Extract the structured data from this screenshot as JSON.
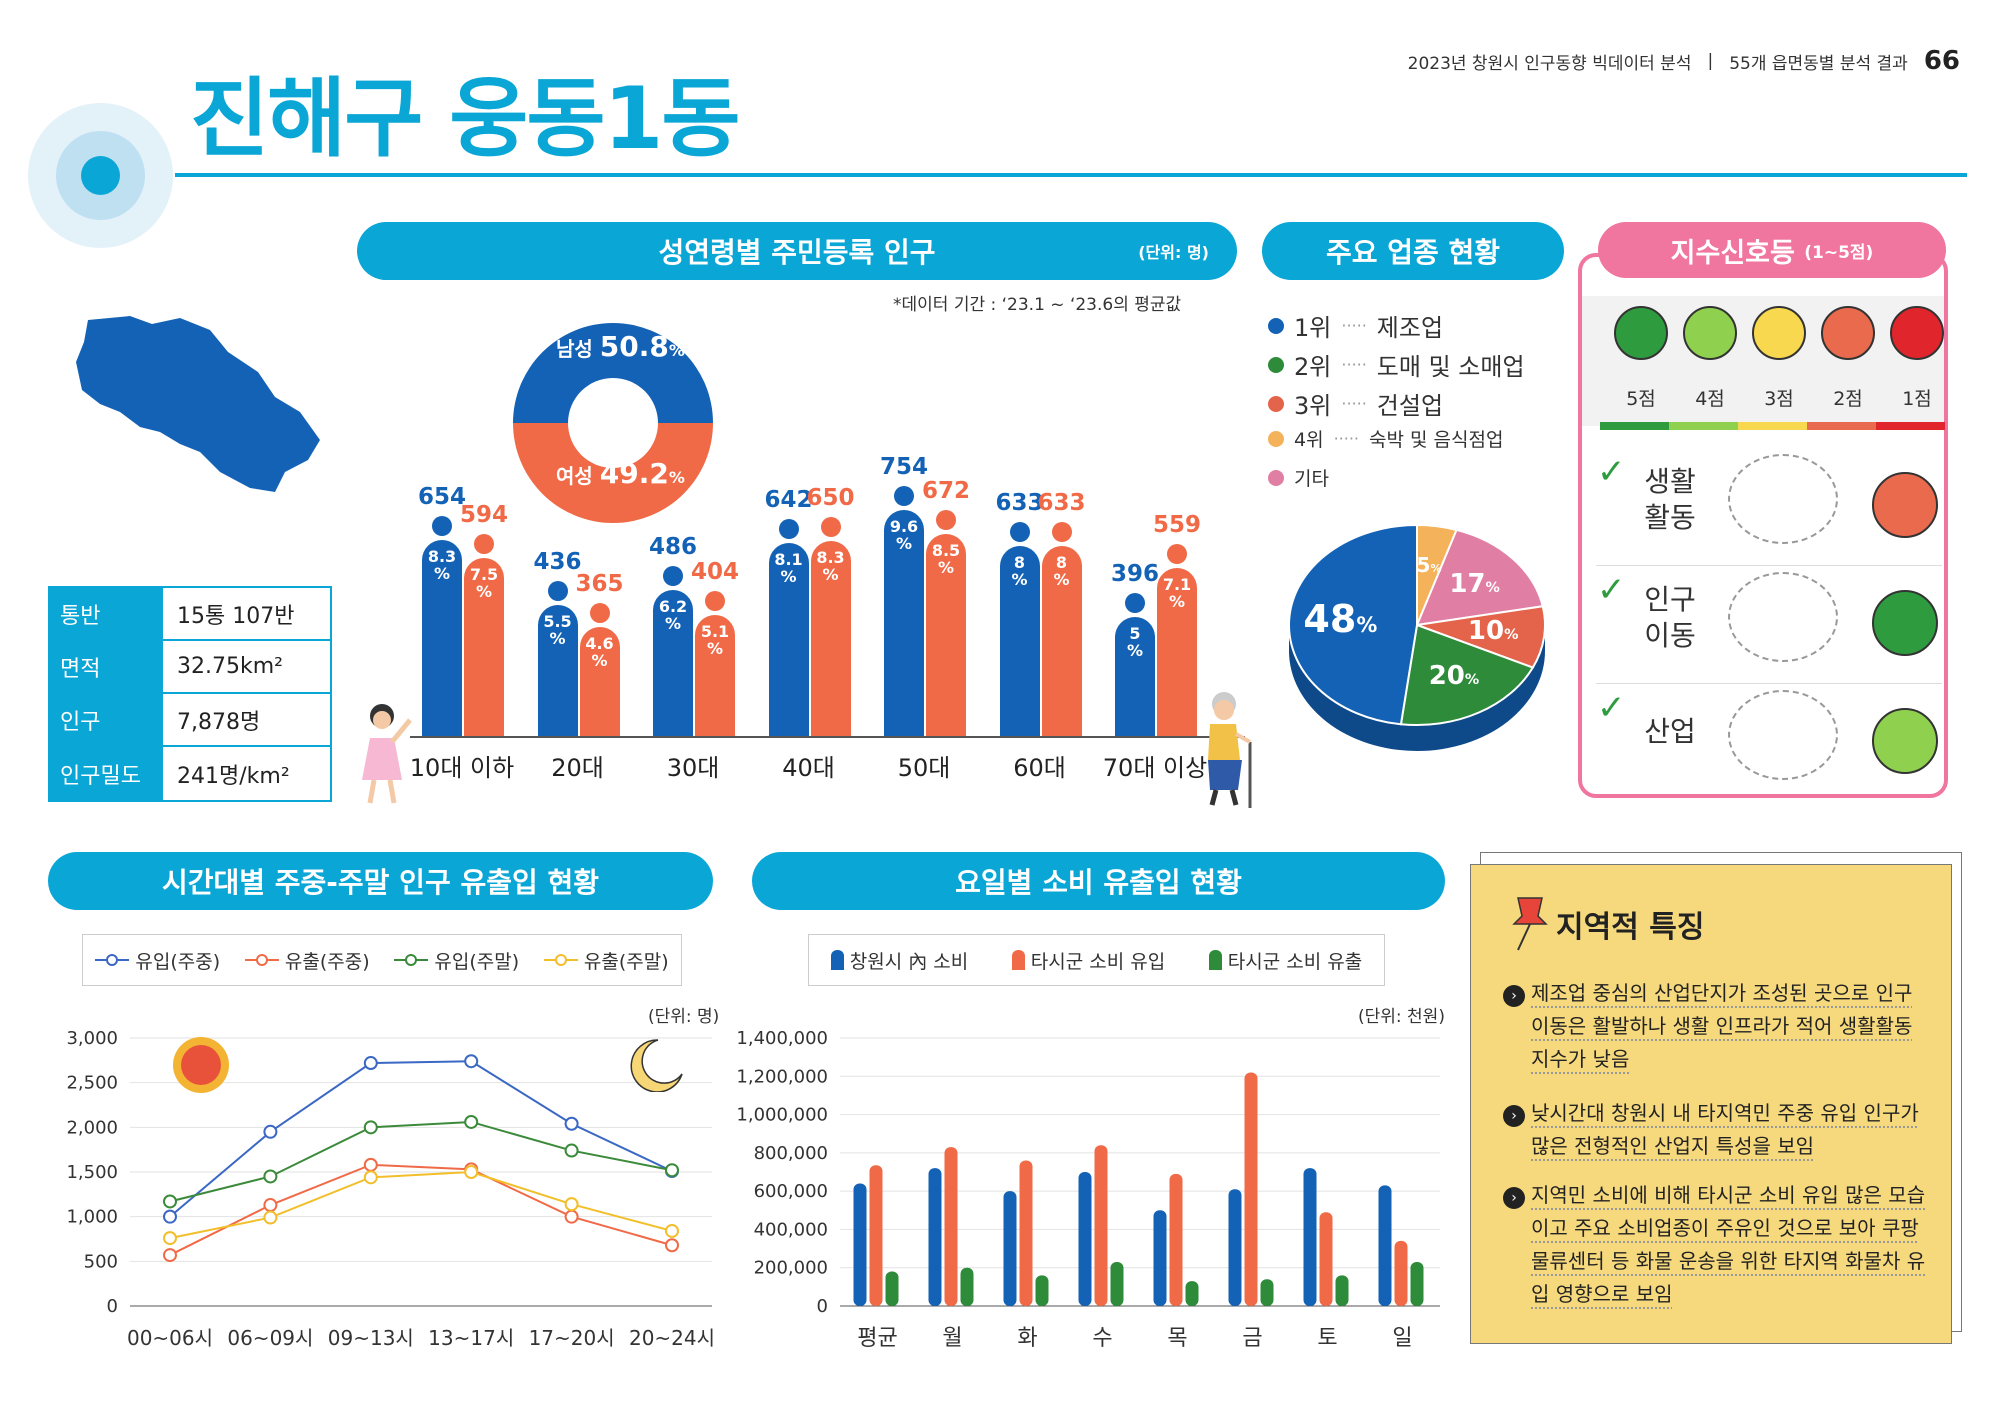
{
  "header": {
    "report": "2023년 창원시 인구동향 빅데이터 분석",
    "sep": "|",
    "section": "55개 읍면동별 분석 결과",
    "page": "66"
  },
  "title": "진해구 웅동1동",
  "pop_chart": {
    "title": "성연령별 주민등록 인구",
    "unit": "(단위: 명)",
    "note": "*데이터 기간 : ‘23.1 ~ ‘23.6의 평균값",
    "male_label": "남성",
    "male_pct": "50.8",
    "female_label": "여성",
    "female_pct": "49.2",
    "pct_sign": "%"
  },
  "chart_data": [
    {
      "type": "bar",
      "title": "성연령별 주민등록 인구",
      "categories": [
        "10대 이하",
        "20대",
        "30대",
        "40대",
        "50대",
        "60대",
        "70대 이상"
      ],
      "series": [
        {
          "name": "남성",
          "values": [
            654,
            436,
            486,
            642,
            754,
            633,
            396
          ],
          "pct": [
            "8.3",
            "5.5",
            "6.2",
            "8.1",
            "9.6",
            "8",
            "5"
          ],
          "color": "#1462b5"
        },
        {
          "name": "여성",
          "values": [
            594,
            365,
            404,
            650,
            672,
            633,
            559
          ],
          "pct": [
            "7.5",
            "4.6",
            "5.1",
            "8.3",
            "8.5",
            "8",
            "7.1"
          ],
          "color": "#f06a47"
        }
      ]
    },
    {
      "type": "pie",
      "title": "주요 업종 현황",
      "values": [
        48,
        20,
        10,
        17,
        5
      ],
      "labels": [
        "48",
        "20",
        "10",
        "17",
        "5"
      ],
      "colors": [
        "#1462b5",
        "#2e8b3a",
        "#e3644a",
        "#e07ea3",
        "#f4b25a"
      ]
    },
    {
      "type": "line",
      "title": "시간대별 주중-주말 인구 유출입 현황",
      "unit": "(단위: 명)",
      "categories": [
        "00~06시",
        "06~09시",
        "09~13시",
        "13~17시",
        "17~20시",
        "20~24시"
      ],
      "ylim": [
        0,
        3000
      ],
      "yticks": [
        "3,000",
        "2,500",
        "2,000",
        "1,500",
        "1,000",
        "500",
        "0"
      ],
      "series": [
        {
          "name": "유입(주중)",
          "values": [
            1000,
            1950,
            2720,
            2740,
            2040,
            1510
          ],
          "color": "#3a68c4"
        },
        {
          "name": "유출(주중)",
          "values": [
            570,
            1130,
            1580,
            1530,
            1000,
            680
          ],
          "color": "#f06a47"
        },
        {
          "name": "유입(주말)",
          "values": [
            1170,
            1450,
            2000,
            2060,
            1740,
            1520
          ],
          "color": "#3b8a3a"
        },
        {
          "name": "유출(주말)",
          "values": [
            760,
            990,
            1440,
            1500,
            1140,
            840
          ],
          "color": "#f2be2a"
        }
      ]
    },
    {
      "type": "bar",
      "title": "요일별 소비 유출입 현황",
      "unit": "(단위: 천원)",
      "categories": [
        "평균",
        "월",
        "화",
        "수",
        "목",
        "금",
        "토",
        "일"
      ],
      "ylim": [
        0,
        1400000
      ],
      "yticks": [
        "1,400,000",
        "1,200,000",
        "1,000,000",
        "800,000",
        "600,000",
        "400,000",
        "200,000",
        "0"
      ],
      "series": [
        {
          "name": "창원시 內 소비",
          "values": [
            640000,
            720000,
            600000,
            700000,
            500000,
            610000,
            720000,
            630000
          ],
          "color": "#1462b5"
        },
        {
          "name": "타시군 소비 유입",
          "values": [
            735000,
            830000,
            760000,
            840000,
            690000,
            1220000,
            490000,
            340000
          ],
          "color": "#f06a47"
        },
        {
          "name": "타시군 소비 유출",
          "values": [
            180000,
            200000,
            160000,
            230000,
            130000,
            140000,
            160000,
            230000
          ],
          "color": "#2e8b3a"
        }
      ]
    }
  ],
  "stats": [
    {
      "k": "통반",
      "v": "15통 107반"
    },
    {
      "k": "면적",
      "v": "32.75km²"
    },
    {
      "k": "인구",
      "v": "7,878명"
    },
    {
      "k": "인구밀도",
      "v": "241명/km²"
    }
  ],
  "industry": {
    "title": "주요 업종 현황",
    "items": [
      {
        "rank": "1위",
        "name": "제조업",
        "color": "#1462b5"
      },
      {
        "rank": "2위",
        "name": "도매 및 소매업",
        "color": "#2e8b3a"
      },
      {
        "rank": "3위",
        "name": "건설업",
        "color": "#e3644a"
      },
      {
        "rank": "4위",
        "name": "숙박 및 음식점업",
        "color": "#f4b25a"
      },
      {
        "rank": "기타",
        "name": "",
        "color": "#e07ea3"
      }
    ],
    "pct_sign": "%"
  },
  "signal": {
    "title": "지수신호등",
    "range": "(1~5점)",
    "scores": [
      "5점",
      "4점",
      "3점",
      "2점",
      "1점"
    ],
    "face_colors": [
      "#2e9b3f",
      "#8fd14f",
      "#f8d84e",
      "#ea6a4e",
      "#e0262c"
    ],
    "rows": [
      {
        "label": "생활\n활동",
        "score": 2
      },
      {
        "label": "인구\n이동",
        "score": 5
      },
      {
        "label": "산업",
        "score": 4
      }
    ]
  },
  "line_chart": {
    "title": "시간대별 주중-주말 인구 유출입 현황"
  },
  "spend_chart": {
    "title": "요일별 소비 유출입 현황"
  },
  "features": {
    "title": "지역적 특징",
    "items": [
      "제조업 중심의 산업단지가 조성된 곳으로 인구 이동은 활발하나 생활 인프라가 적어 생활활동 지수가 낮음",
      "낮시간대 창원시 내 타지역민 주중 유입 인구가 많은 전형적인 산업지 특성을 보임",
      "지역민 소비에 비해 타시군 소비 유입 많은 모습이고 주요 소비업종이 주유인 것으로 보아 쿠팡 물류센터 등 화물 운송을 위한 타지역 화물차 유입 영향으로 보임"
    ]
  }
}
